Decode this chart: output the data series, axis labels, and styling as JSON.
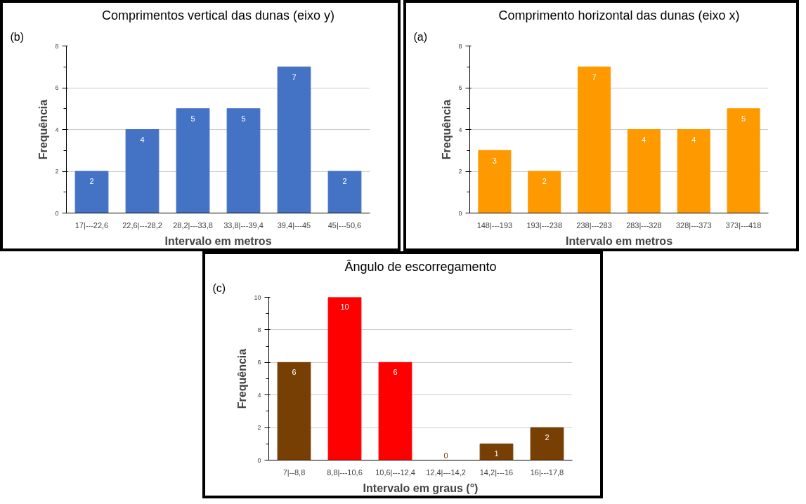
{
  "chart_data": [
    {
      "type": "bar",
      "title": "Comprimentos vertical das dunas (eixo y)",
      "xlabel": "Intervalo em metros",
      "ylabel": "Frequência",
      "annotations": [
        "(b)"
      ],
      "categories": [
        "17|---22,6",
        "22,6|---28,2",
        "28,2|---33,8",
        "33,8|---39,4",
        "39,4|---45",
        "45|---50,6"
      ],
      "values": [
        2,
        4,
        5,
        5,
        7,
        2
      ],
      "colors": [
        "#4472c4",
        "#4472c4",
        "#4472c4",
        "#4472c4",
        "#4472c4",
        "#4472c4"
      ],
      "ylim": [
        0,
        8
      ],
      "yticks": [
        0,
        2,
        4,
        6,
        8
      ],
      "grid": "y",
      "data_labels": true
    },
    {
      "type": "bar",
      "title": "Comprimento horizontal das dunas (eixo x)",
      "xlabel": "Intervalo em metros",
      "ylabel": "Frequência",
      "annotations": [
        "(a)"
      ],
      "categories": [
        "148|---193",
        "193|---238",
        "238|---283",
        "283|---328",
        "328|---373",
        "373|---418"
      ],
      "values": [
        3,
        2,
        7,
        4,
        4,
        5
      ],
      "colors": [
        "#ff9900",
        "#ff9900",
        "#ff9900",
        "#ff9900",
        "#ff9900",
        "#ff9900"
      ],
      "ylim": [
        0,
        8
      ],
      "yticks": [
        0,
        2,
        4,
        6,
        8
      ],
      "grid": "y",
      "data_labels": true
    },
    {
      "type": "bar",
      "title": "Ângulo de escorregamento",
      "xlabel": "Intervalo em graus (°)",
      "ylabel": "Frequência",
      "annotations": [
        "(c)"
      ],
      "categories": [
        "7|--8,8",
        "8,8|---10,6",
        "10,6|---12,4",
        "12,4|---14,2",
        "14,2|---16",
        "16|---17,8"
      ],
      "values": [
        6,
        10,
        6,
        0,
        1,
        2
      ],
      "colors": [
        "#783f04",
        "#ff0000",
        "#ff0000",
        "#783f04",
        "#783f04",
        "#783f04"
      ],
      "ylim": [
        0,
        10
      ],
      "yticks": [
        0,
        2,
        4,
        6,
        8,
        10
      ],
      "grid": "y",
      "data_labels": true
    }
  ]
}
